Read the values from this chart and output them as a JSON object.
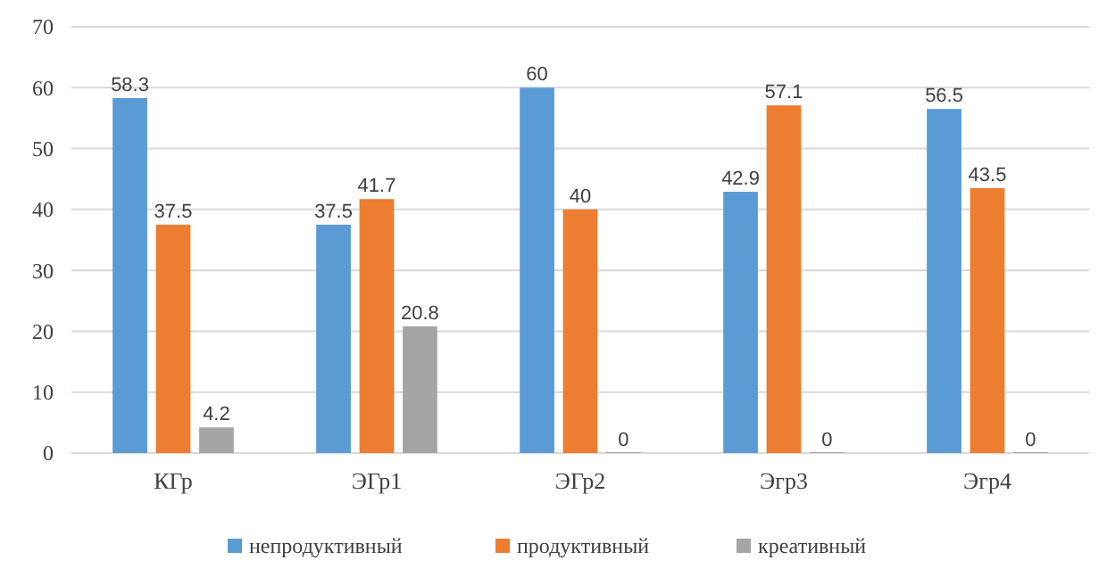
{
  "chart_data": {
    "type": "bar",
    "categories": [
      "КГр",
      "ЭГр1",
      "ЭГр2",
      "Эгр3",
      "Эгр4"
    ],
    "series": [
      {
        "name": "непродуктивный",
        "color": "#5b9bd5",
        "values": [
          58.3,
          37.5,
          60,
          42.9,
          56.5
        ]
      },
      {
        "name": "продуктивный",
        "color": "#ed7d31",
        "values": [
          37.5,
          41.7,
          40,
          57.1,
          43.5
        ]
      },
      {
        "name": "креативный",
        "color": "#a5a5a5",
        "values": [
          4.2,
          20.8,
          0,
          0,
          0
        ]
      }
    ],
    "ylim": [
      0,
      70
    ],
    "yticks": [
      0,
      10,
      20,
      30,
      40,
      50,
      60,
      70
    ],
    "grid": "y",
    "legend": "bottom",
    "data_labels": true
  }
}
